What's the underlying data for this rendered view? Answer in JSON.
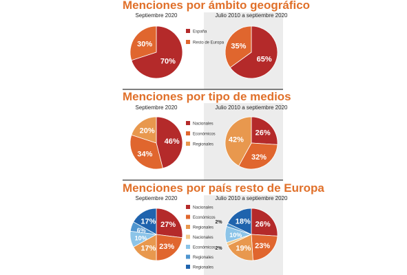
{
  "chart_data": [
    {
      "type": "pie",
      "title": "Menciones por ámbito geográfico",
      "legend": [
        {
          "label": "España",
          "color": "#b42a2a"
        },
        {
          "label": "Resto de Europa",
          "color": "#e0662e"
        }
      ],
      "pies": [
        {
          "subtitle": "Septiembre 2020",
          "slices": [
            {
              "value": 70,
              "label": "70%",
              "color": "#b42a2a"
            },
            {
              "value": 30,
              "label": "30%",
              "color": "#e0662e"
            }
          ]
        },
        {
          "subtitle": "Julio 2010 a septiembre 2020",
          "slices": [
            {
              "value": 65,
              "label": "65%",
              "color": "#b42a2a"
            },
            {
              "value": 35,
              "label": "35%",
              "color": "#e0662e"
            }
          ]
        }
      ]
    },
    {
      "type": "pie",
      "title": "Menciones por tipo de medios",
      "legend": [
        {
          "label": "Nacionales",
          "color": "#b42a2a"
        },
        {
          "label": "Económicos",
          "color": "#e0662e"
        },
        {
          "label": "Regionales",
          "color": "#e8984e"
        }
      ],
      "pies": [
        {
          "subtitle": "Septiembre 2020",
          "slices": [
            {
              "value": 46,
              "label": "46%",
              "color": "#b42a2a"
            },
            {
              "value": 34,
              "label": "34%",
              "color": "#e0662e"
            },
            {
              "value": 20,
              "label": "20%",
              "color": "#e8984e"
            }
          ]
        },
        {
          "subtitle": "Julio 2010 a septiembre 2020",
          "slices": [
            {
              "value": 26,
              "label": "26%",
              "color": "#b42a2a"
            },
            {
              "value": 32,
              "label": "32%",
              "color": "#e0662e"
            },
            {
              "value": 42,
              "label": "42%",
              "color": "#e8984e"
            }
          ]
        }
      ]
    },
    {
      "type": "pie",
      "title": "Menciones por país resto de Europa",
      "legend": [
        {
          "label": "Nacionales",
          "color": "#b42a2a"
        },
        {
          "label": "Económicos",
          "color": "#e0662e"
        },
        {
          "label": "Regionales",
          "color": "#e8984e"
        },
        {
          "label": "Nacionales",
          "color": "#f2c98a"
        },
        {
          "label": "Económicos",
          "color": "#8cc4e8"
        },
        {
          "label": "Regionales",
          "color": "#4f95cf"
        },
        {
          "label": "Regionales",
          "color": "#1f63ad"
        }
      ],
      "pies": [
        {
          "subtitle": "Septiembre 2020",
          "slices": [
            {
              "value": 27,
              "label": "27%",
              "color": "#b42a2a"
            },
            {
              "value": 23,
              "label": "23%",
              "color": "#e0662e"
            },
            {
              "value": 17,
              "label": "17%",
              "color": "#e8984e"
            },
            {
              "value": 10,
              "label": "10%",
              "color": "#8cc4e8"
            },
            {
              "value": 6,
              "label": "6%",
              "color": "#4f95cf"
            },
            {
              "value": 17,
              "label": "17%",
              "color": "#1f63ad"
            }
          ]
        },
        {
          "subtitle": "Julio 2010 a septiembre 2020",
          "slices": [
            {
              "value": 26,
              "label": "26%",
              "color": "#b42a2a"
            },
            {
              "value": 23,
              "label": "23%",
              "color": "#e0662e"
            },
            {
              "value": 19,
              "label": "19%",
              "color": "#e8984e"
            },
            {
              "value": 2,
              "label": "2%",
              "color": "#f2c98a",
              "outside": true
            },
            {
              "value": 10,
              "label": "10%",
              "color": "#8cc4e8"
            },
            {
              "value": 2,
              "label": "2%",
              "color": "#4f95cf",
              "outside": true
            },
            {
              "value": 18,
              "label": "18%",
              "color": "#1f63ad"
            }
          ]
        }
      ]
    }
  ]
}
